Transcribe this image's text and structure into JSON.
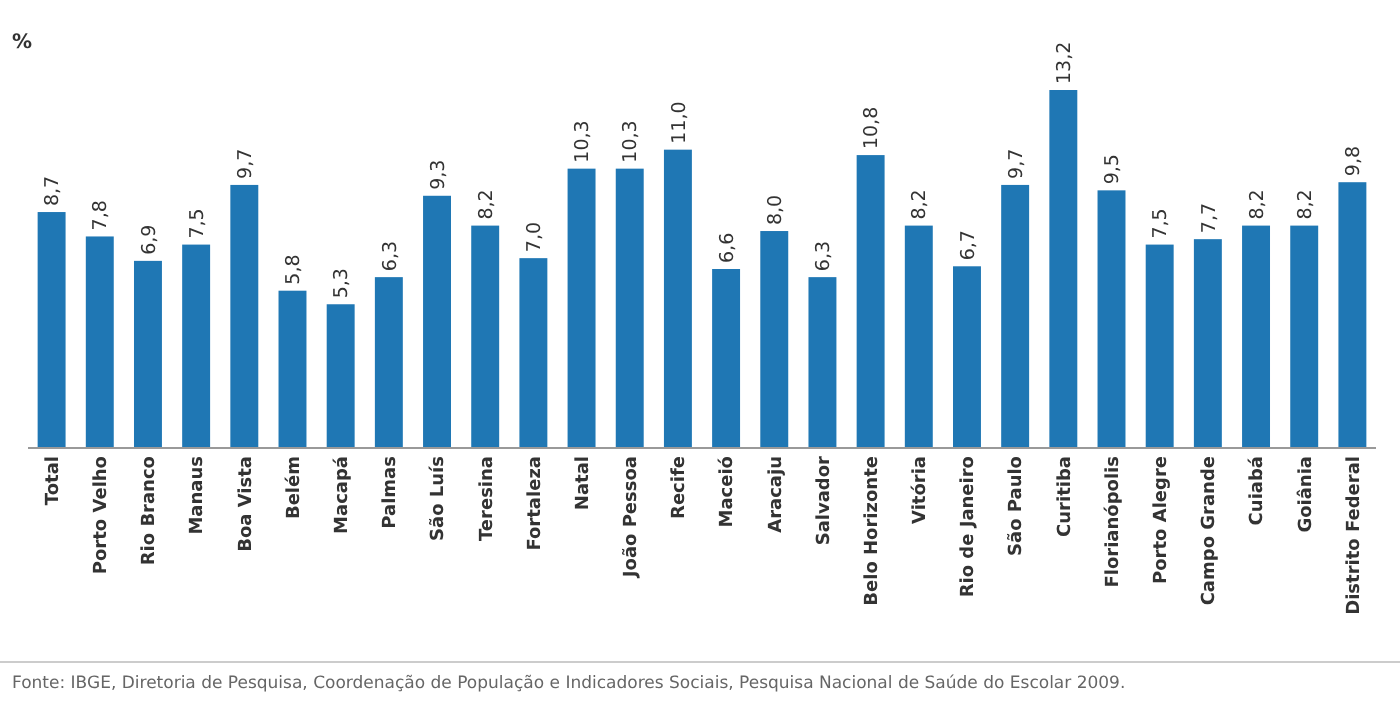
{
  "chart_data": {
    "type": "bar",
    "ylabel": "%",
    "categories": [
      "Total",
      "Porto Velho",
      "Rio Branco",
      "Manaus",
      "Boa Vista",
      "Belém",
      "Macapá",
      "Palmas",
      "São Luís",
      "Teresina",
      "Fortaleza",
      "Natal",
      "João Pessoa",
      "Recife",
      "Maceió",
      "Aracaju",
      "Salvador",
      "Belo Horizonte",
      "Vitória",
      "Rio de Janeiro",
      "São Paulo",
      "Curitiba",
      "Florianópolis",
      "Porto Alegre",
      "Campo Grande",
      "Cuiabá",
      "Goiânia",
      "Distrito Federal"
    ],
    "values": [
      8.7,
      7.8,
      6.9,
      7.5,
      9.7,
      5.8,
      5.3,
      6.3,
      9.3,
      8.2,
      7.0,
      10.3,
      10.3,
      11.0,
      6.6,
      8.0,
      6.3,
      10.8,
      8.2,
      6.7,
      9.7,
      13.2,
      9.5,
      7.5,
      7.7,
      8.2,
      8.2,
      9.8
    ],
    "value_labels": [
      "8,7",
      "7,8",
      "6,9",
      "7,5",
      "9,7",
      "5,8",
      "5,3",
      "6,3",
      "9,3",
      "8,2",
      "7,0",
      "10,3",
      "10,3",
      "11,0",
      "6,6",
      "8,0",
      "6,3",
      "10,8",
      "8,2",
      "6,7",
      "9,7",
      "13,2",
      "9,5",
      "7,5",
      "7,7",
      "8,2",
      "8,2",
      "9,8"
    ],
    "color": "#1f77b4",
    "tick_labels": "x",
    "annotations": [
      "Fonte: IBGE, Diretoria de Pesquisa, Coordenação de População e Indicadores Sociais, Pesquisa Nacional de Saúde do Escolar 2009."
    ]
  }
}
